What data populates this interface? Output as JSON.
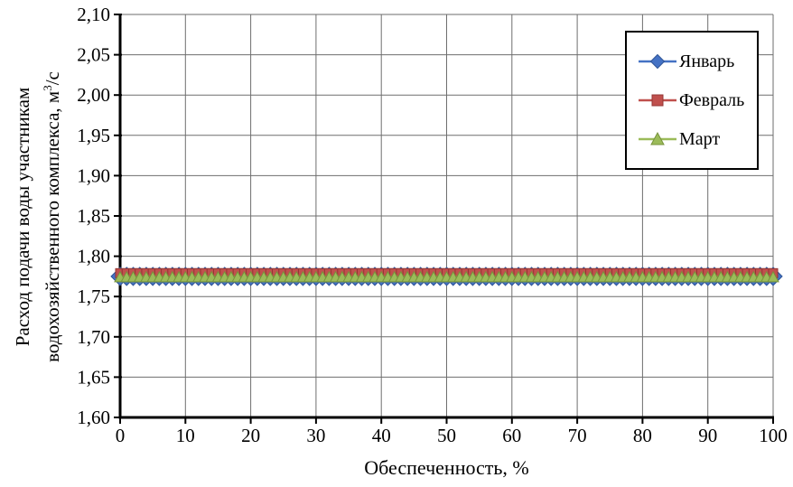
{
  "chart_data": {
    "type": "line",
    "title": "",
    "xlabel": "Обеспеченность, %",
    "ylabel": "Расход подачи воды участникам водохозяйственного комплекса, м3/с",
    "ylabel_lines": {
      "line1": "Расход подачи воды участникам",
      "line2_prefix": "водохозяйственного комплекса, м",
      "line2_sup": "3",
      "line2_suffix": "/с"
    },
    "x_axis": {
      "min": 0,
      "max": 100,
      "major_step": 10,
      "tick_labels": [
        "0",
        "10",
        "20",
        "30",
        "40",
        "50",
        "60",
        "70",
        "80",
        "90",
        "100"
      ]
    },
    "y_axis": {
      "min": 1.6,
      "max": 2.1,
      "major_step": 0.05,
      "decimal_separator": ",",
      "tick_labels_top_to_bottom": [
        "2,10",
        "2,05",
        "2,00",
        "1,95",
        "1,90",
        "1,85",
        "1,80",
        "1,75",
        "1,70",
        "1,65",
        "1,60"
      ]
    },
    "grid": {
      "horizontal": true,
      "vertical": true,
      "color": "#6e6e6e"
    },
    "axis_color": "#000000",
    "x_points": {
      "from": 0,
      "to": 100,
      "step": 1
    },
    "series": [
      {
        "id": "january",
        "name": "Январь",
        "marker": "diamond",
        "color": "#4472C4",
        "edge_color": "#2F5597",
        "constant_value": 1.775,
        "marker_size": 20
      },
      {
        "id": "february",
        "name": "Февраль",
        "marker": "square",
        "color": "#C0504D",
        "edge_color": "#943634",
        "constant_value": 1.779,
        "marker_size": 10
      },
      {
        "id": "march",
        "name": "Март",
        "marker": "triangle",
        "color": "#9BBB59",
        "edge_color": "#77933C",
        "constant_value": 1.774,
        "marker_size": 12
      }
    ],
    "legend_position": "top-right"
  }
}
